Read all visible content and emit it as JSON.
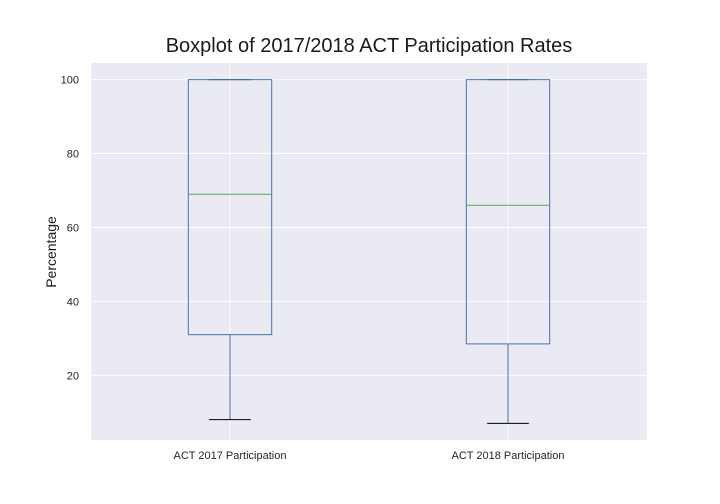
{
  "chart_data": {
    "type": "box",
    "title": "Boxplot of 2017/2018 ACT Participation Rates",
    "xlabel": "",
    "ylabel": "Percentage",
    "ylim": [
      2.5,
      104.5
    ],
    "yticks": [
      20,
      40,
      60,
      80,
      100
    ],
    "grid": true,
    "categories": [
      "ACT 2017 Participation",
      "ACT 2018 Participation"
    ],
    "boxes": [
      {
        "category": "ACT 2017 Participation",
        "whislo": 8,
        "q1": 31,
        "median": 69,
        "q3": 100,
        "whishi": 100
      },
      {
        "category": "ACT 2018 Participation",
        "whislo": 7,
        "q1": 28.5,
        "median": 66,
        "q3": 100,
        "whishi": 100
      }
    ],
    "colors": {
      "background": "#eaeaf2",
      "grid": "#ffffff",
      "box": "#4c72b0",
      "median": "#55a868",
      "cap": "#000000"
    }
  }
}
